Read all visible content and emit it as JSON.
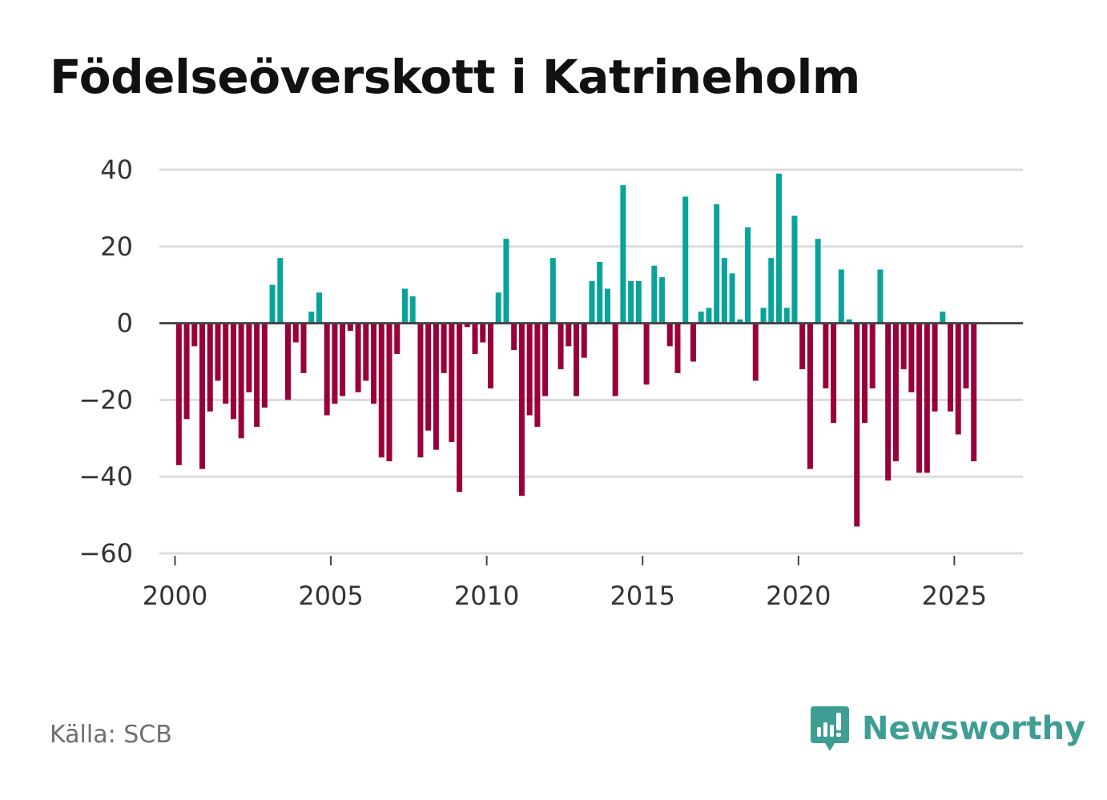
{
  "title": "Födelseöverskott i Katrineholm",
  "source": "Källa: SCB",
  "brand": {
    "name": "Newsworthy"
  },
  "colors": {
    "positive": "#0aa39b",
    "negative": "#99003a",
    "grid": "#dddddd",
    "zero": "#444444",
    "brand": "#3f9e93"
  },
  "chart_data": {
    "type": "bar",
    "title": "Födelseöverskott i Katrineholm",
    "xlabel": "",
    "ylabel": "",
    "ylim": [
      -60,
      40
    ],
    "xlim": [
      1999.5,
      2027.2
    ],
    "yticks": [
      40,
      20,
      0,
      -20,
      -40,
      -60
    ],
    "ytick_labels": [
      "40",
      "20",
      "0",
      "−20",
      "−40",
      "−60"
    ],
    "xticks": [
      2000,
      2005,
      2010,
      2015,
      2020,
      2025
    ],
    "xtick_labels": [
      "2000",
      "2005",
      "2010",
      "2015",
      "2020",
      "2025"
    ],
    "start": 2000.125,
    "step": 0.25,
    "values": [
      -37,
      -25,
      -6,
      -38,
      -23,
      -15,
      -21,
      -25,
      -30,
      -18,
      -27,
      -22,
      10,
      17,
      -20,
      -5,
      -13,
      3,
      8,
      -24,
      -21,
      -19,
      -2,
      -18,
      -15,
      -21,
      -35,
      -36,
      -8,
      9,
      7,
      -35,
      -28,
      -33,
      -13,
      -31,
      -44,
      -1,
      -8,
      -5,
      -17,
      8,
      22,
      -7,
      -45,
      -24,
      -27,
      -19,
      17,
      -12,
      -6,
      -19,
      -9,
      11,
      16,
      9,
      -19,
      36,
      11,
      11,
      -16,
      15,
      12,
      -6,
      -13,
      33,
      -10,
      3,
      4,
      31,
      17,
      13,
      1,
      25,
      -15,
      4,
      17,
      39,
      4,
      28,
      -12,
      -38,
      22,
      -17,
      -26,
      14,
      1,
      -53,
      -26,
      -17,
      14,
      -41,
      -36,
      -12,
      -18,
      -39,
      -39,
      -23,
      3,
      -23,
      -29,
      -17,
      -36
    ]
  }
}
